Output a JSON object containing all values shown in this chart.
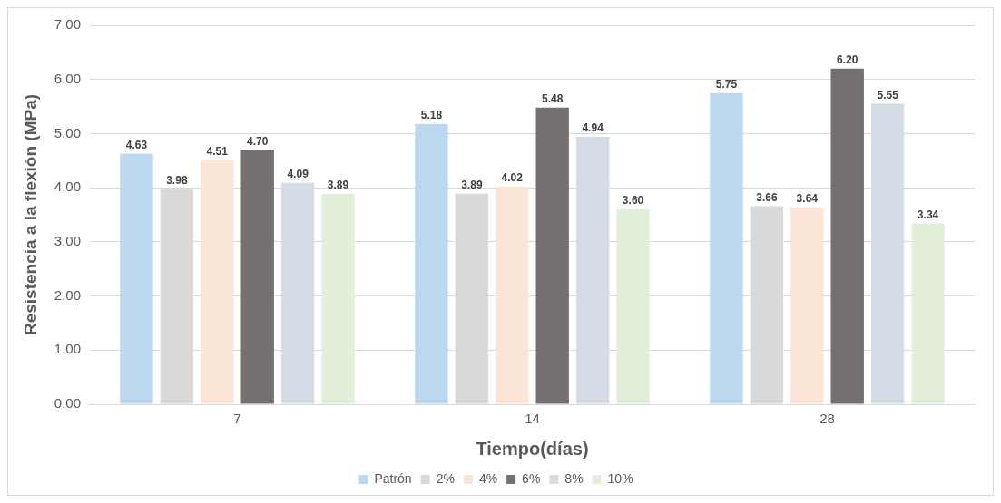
{
  "chart_data": {
    "type": "bar",
    "xlabel": "Tiempo(días)",
    "ylabel": "Resistencia a la flexión (MPa)",
    "categories": [
      "7",
      "14",
      "28"
    ],
    "series": [
      {
        "name": "Patrón",
        "color": "#bdd7ee",
        "values": [
          4.63,
          5.18,
          5.75
        ],
        "value_labels": [
          "4.63",
          "5.18",
          "5.75"
        ]
      },
      {
        "name": "2%",
        "color": "#d9d9d9",
        "values": [
          3.98,
          3.89,
          3.66
        ],
        "value_labels": [
          "3.98",
          "3.89",
          "3.66"
        ]
      },
      {
        "name": "4%",
        "color": "#fbe5d6",
        "values": [
          4.51,
          4.02,
          3.64
        ],
        "value_labels": [
          "4.51",
          "4.02",
          "3.64"
        ]
      },
      {
        "name": "6%",
        "color": "#767171",
        "values": [
          4.7,
          5.48,
          6.2
        ],
        "value_labels": [
          "4.70",
          "5.48",
          "6.20"
        ]
      },
      {
        "name": "8%",
        "color": "#d6dce5",
        "values": [
          4.09,
          4.94,
          5.55
        ],
        "value_labels": [
          "4.09",
          "4.94",
          "5.55"
        ]
      },
      {
        "name": "10%",
        "color": "#e2f0d9",
        "values": [
          3.89,
          3.6,
          3.34
        ],
        "value_labels": [
          "3.89",
          "3.60",
          "3.34"
        ]
      }
    ],
    "ylim": [
      0,
      7
    ],
    "yticks": [
      {
        "value": 0,
        "label": "0.00"
      },
      {
        "value": 1,
        "label": "1.00"
      },
      {
        "value": 2,
        "label": "2.00"
      },
      {
        "value": 3,
        "label": "3.00"
      },
      {
        "value": 4,
        "label": "4.00"
      },
      {
        "value": 5,
        "label": "5.00"
      },
      {
        "value": 6,
        "label": "6.00"
      },
      {
        "value": 7,
        "label": "7.00"
      }
    ],
    "grid": "y",
    "legend": "bottom"
  }
}
